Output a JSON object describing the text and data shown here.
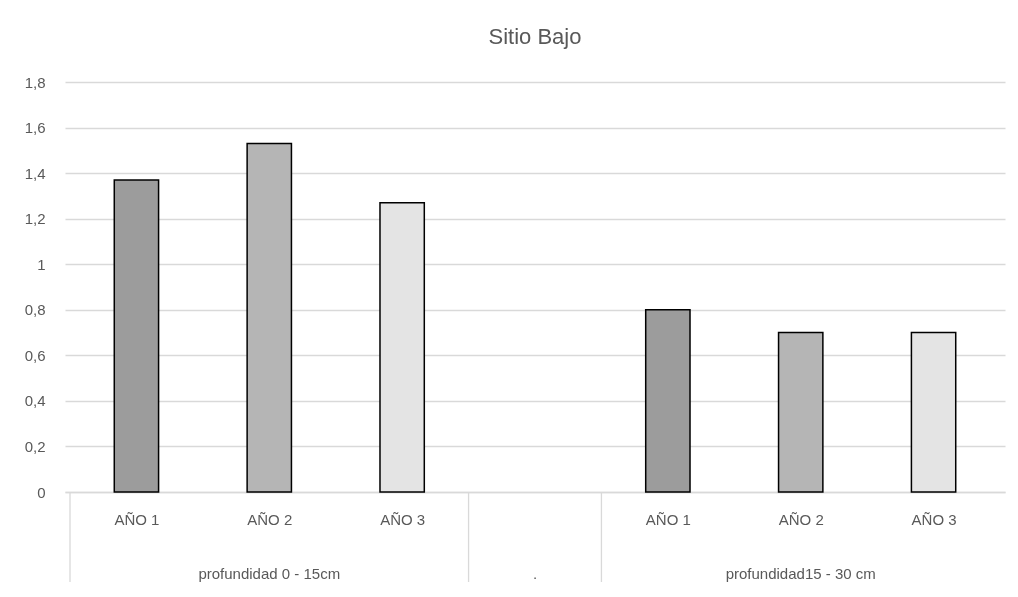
{
  "chart_data": {
    "type": "bar",
    "title": "Sitio Bajo",
    "categories": [
      "AÑO 1",
      "AÑO 2",
      "AÑO 3",
      null,
      "AÑO 1",
      "AÑO 2",
      "AÑO 3"
    ],
    "values": [
      1.37,
      1.53,
      1.27,
      null,
      0.8,
      0.7,
      0.7
    ],
    "colors": [
      "#9c9c9c",
      "#b5b5b5",
      "#e4e4e4",
      null,
      "#9c9c9c",
      "#b5b5b5",
      "#e4e4e4"
    ],
    "ylim": [
      0,
      1.8
    ],
    "yticks": [
      0,
      {
        "value": 0.2,
        "label": "0,2"
      },
      {
        "value": 0.4,
        "label": "0,4"
      },
      {
        "value": 0.6,
        "label": "0,6"
      },
      {
        "value": 0.8,
        "label": "0,8"
      },
      1,
      {
        "value": 1.2,
        "label": "1,2"
      },
      {
        "value": 1.4,
        "label": "1,4"
      },
      {
        "value": 1.6,
        "label": "1,6"
      },
      {
        "value": 1.8,
        "label": "1,8"
      }
    ],
    "grid": "y",
    "annotations": [
      "profundidad 0 - 15cm",
      ".",
      "profundidad15 - 30 cm"
    ]
  }
}
